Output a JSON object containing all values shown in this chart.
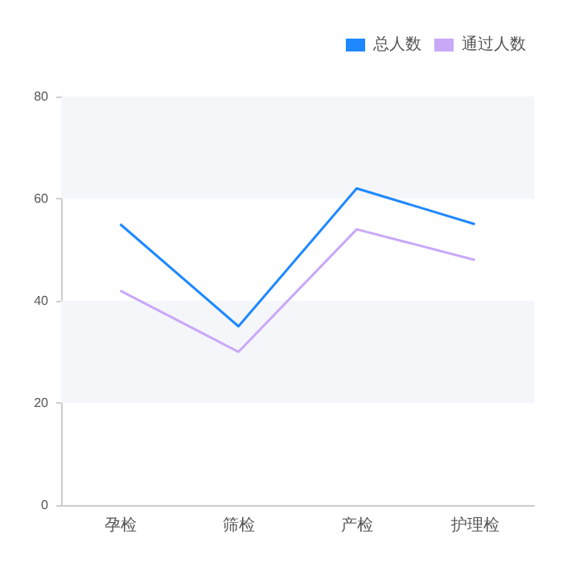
{
  "chart_data": {
    "type": "line",
    "categories": [
      "孕检",
      "筛检",
      "产检",
      "护理检"
    ],
    "series": [
      {
        "name": "总人数",
        "color": "#1e88ff",
        "values": [
          55,
          35,
          62,
          55
        ]
      },
      {
        "name": "通过人数",
        "color": "#c9a8f8",
        "values": [
          42,
          30,
          54,
          48
        ]
      }
    ],
    "ylim": [
      0,
      80
    ],
    "yticks": [
      0,
      20,
      40,
      60,
      80
    ],
    "grid": false,
    "legend": "top right",
    "marker": "none",
    "line_style": "solid",
    "bands": [
      {
        "axis": "y",
        "from": 20,
        "to": 40,
        "color": "#f5f6fa"
      },
      {
        "axis": "y",
        "from": 60,
        "to": 80,
        "color": "#f5f6fa"
      }
    ]
  }
}
